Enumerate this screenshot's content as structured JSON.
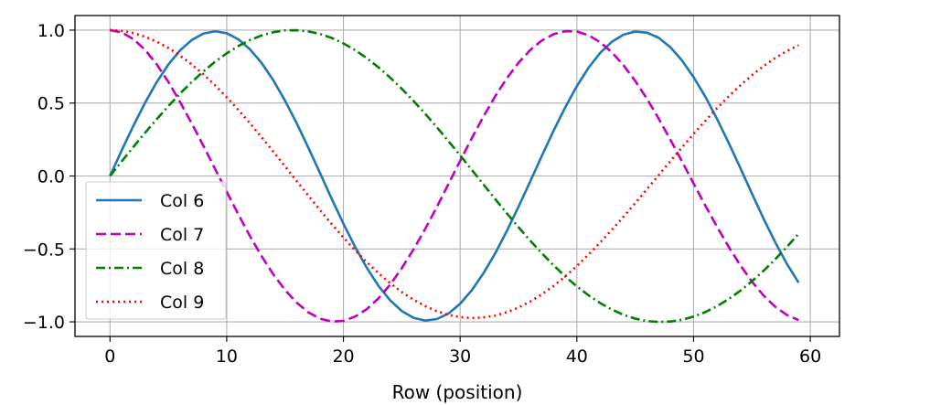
{
  "chart_data": {
    "type": "line",
    "title": "",
    "xlabel": "Row (position)",
    "ylabel": "",
    "xlim": [
      -3,
      62.5
    ],
    "ylim": [
      -1.1,
      1.1
    ],
    "grid": true,
    "legend_position": "lower-left",
    "x_ticks": [
      0,
      10,
      20,
      30,
      40,
      50,
      60
    ],
    "x_tick_labels": [
      "0",
      "10",
      "20",
      "30",
      "40",
      "50",
      "60"
    ],
    "y_ticks": [
      1.0,
      0.5,
      0.0,
      -0.5,
      -1.0
    ],
    "y_tick_labels": [
      "1.0",
      "0.5",
      "0.0",
      "−0.5",
      "−1.0"
    ],
    "x": [
      0,
      1,
      2,
      3,
      4,
      5,
      6,
      7,
      8,
      9,
      10,
      11,
      12,
      13,
      14,
      15,
      16,
      17,
      18,
      19,
      20,
      21,
      22,
      23,
      24,
      25,
      26,
      27,
      28,
      29,
      30,
      31,
      32,
      33,
      34,
      35,
      36,
      37,
      38,
      39,
      40,
      41,
      42,
      43,
      44,
      45,
      46,
      47,
      48,
      49,
      50,
      51,
      52,
      53,
      54,
      55,
      56,
      57,
      58,
      59
    ],
    "series": [
      {
        "name": "Col 6",
        "color": "#1f77b4",
        "dash": "solid",
        "values": [
          0.0,
          0.175,
          0.344,
          0.501,
          0.643,
          0.764,
          0.861,
          0.932,
          0.976,
          0.992,
          0.979,
          0.937,
          0.868,
          0.774,
          0.655,
          0.516,
          0.361,
          0.193,
          0.019,
          -0.157,
          -0.327,
          -0.486,
          -0.629,
          -0.753,
          -0.852,
          -0.926,
          -0.972,
          -0.991,
          -0.981,
          -0.943,
          -0.876,
          -0.783,
          -0.667,
          -0.531,
          -0.377,
          -0.211,
          -0.038,
          0.138,
          0.31,
          0.47,
          0.616,
          0.742,
          0.844,
          0.92,
          0.969,
          0.99,
          0.983,
          0.948,
          0.884,
          0.793,
          0.678,
          0.545,
          0.393,
          0.228,
          0.056,
          -0.12,
          -0.293,
          -0.455,
          -0.603,
          -0.731
        ]
      },
      {
        "name": "Col 7",
        "color": "#bf00bf",
        "dash": "dashed",
        "values": [
          1.0,
          0.985,
          0.939,
          0.865,
          0.766,
          0.645,
          0.508,
          0.361,
          0.207,
          0.049,
          -0.108,
          -0.264,
          -0.413,
          -0.551,
          -0.675,
          -0.782,
          -0.869,
          -0.935,
          -0.978,
          -0.998,
          -0.993,
          -0.964,
          -0.913,
          -0.839,
          -0.745,
          -0.632,
          -0.504,
          -0.364,
          -0.213,
          -0.055,
          0.104,
          0.259,
          0.408,
          0.546,
          0.67,
          0.776,
          0.863,
          0.929,
          0.972,
          0.993,
          0.99,
          0.965,
          0.917,
          0.848,
          0.759,
          0.652,
          0.53,
          0.395,
          0.251,
          0.101,
          -0.051,
          -0.202,
          -0.347,
          -0.485,
          -0.611,
          -0.724,
          -0.82,
          -0.897,
          -0.953,
          -0.988
        ]
      },
      {
        "name": "Col 8",
        "color": "#008000",
        "dash": "dashdot",
        "values": [
          0.0,
          0.1,
          0.199,
          0.296,
          0.389,
          0.479,
          0.565,
          0.644,
          0.717,
          0.783,
          0.841,
          0.891,
          0.932,
          0.964,
          0.986,
          0.998,
          0.999,
          0.991,
          0.974,
          0.946,
          0.909,
          0.863,
          0.808,
          0.745,
          0.675,
          0.598,
          0.515,
          0.427,
          0.335,
          0.239,
          0.141,
          0.042,
          -0.058,
          -0.158,
          -0.256,
          -0.351,
          -0.443,
          -0.53,
          -0.612,
          -0.688,
          -0.757,
          -0.818,
          -0.871,
          -0.916,
          -0.952,
          -0.978,
          -0.995,
          -1.0,
          -0.998,
          -0.986,
          -0.964,
          -0.933,
          -0.893,
          -0.844,
          -0.787,
          -0.722,
          -0.65,
          -0.571,
          -0.486,
          -0.396
        ]
      },
      {
        "name": "Col 9",
        "color": "#ff0000",
        "dash": "dotted",
        "values": [
          1.0,
          0.995,
          0.98,
          0.955,
          0.921,
          0.878,
          0.826,
          0.765,
          0.697,
          0.622,
          0.54,
          0.453,
          0.361,
          0.265,
          0.166,
          0.066,
          -0.035,
          -0.135,
          -0.234,
          -0.33,
          -0.422,
          -0.509,
          -0.591,
          -0.666,
          -0.735,
          -0.796,
          -0.848,
          -0.892,
          -0.927,
          -0.952,
          -0.968,
          -0.974,
          -0.97,
          -0.957,
          -0.934,
          -0.902,
          -0.861,
          -0.811,
          -0.754,
          -0.689,
          -0.617,
          -0.539,
          -0.456,
          -0.369,
          -0.279,
          -0.186,
          -0.091,
          0.005,
          0.101,
          0.195,
          0.288,
          0.378,
          0.464,
          0.545,
          0.621,
          0.691,
          0.754,
          0.809,
          0.857,
          0.896
        ]
      }
    ]
  }
}
